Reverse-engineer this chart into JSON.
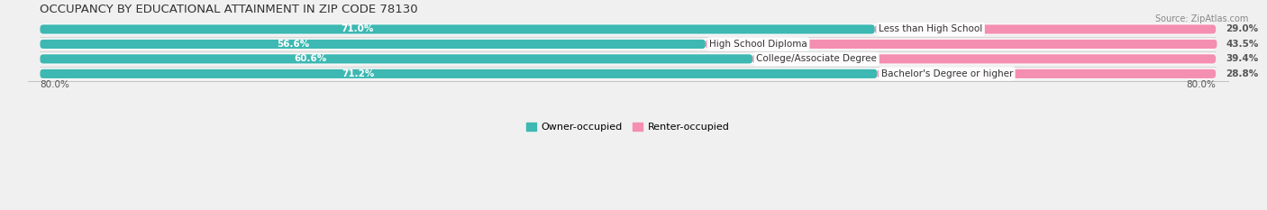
{
  "title": "OCCUPANCY BY EDUCATIONAL ATTAINMENT IN ZIP CODE 78130",
  "source": "Source: ZipAtlas.com",
  "categories": [
    "Less than High School",
    "High School Diploma",
    "College/Associate Degree",
    "Bachelor's Degree or higher"
  ],
  "owner_values": [
    71.0,
    56.6,
    60.6,
    71.2
  ],
  "renter_values": [
    29.0,
    43.5,
    39.4,
    28.8
  ],
  "owner_color": "#3db8b2",
  "renter_color": "#f48fb1",
  "owner_label": "Owner-occupied",
  "renter_label": "Renter-occupied",
  "axis_label_left": "80.0%",
  "axis_label_right": "80.0%",
  "title_fontsize": 9.5,
  "source_fontsize": 7,
  "bar_height": 0.62,
  "value_fontsize": 7.5,
  "category_fontsize": 7.5,
  "legend_fontsize": 8,
  "bg_color": "#f0f0f0",
  "bar_bg_color": "#ffffff",
  "value_color_inside": "#ffffff",
  "value_color_outside": "#555555"
}
